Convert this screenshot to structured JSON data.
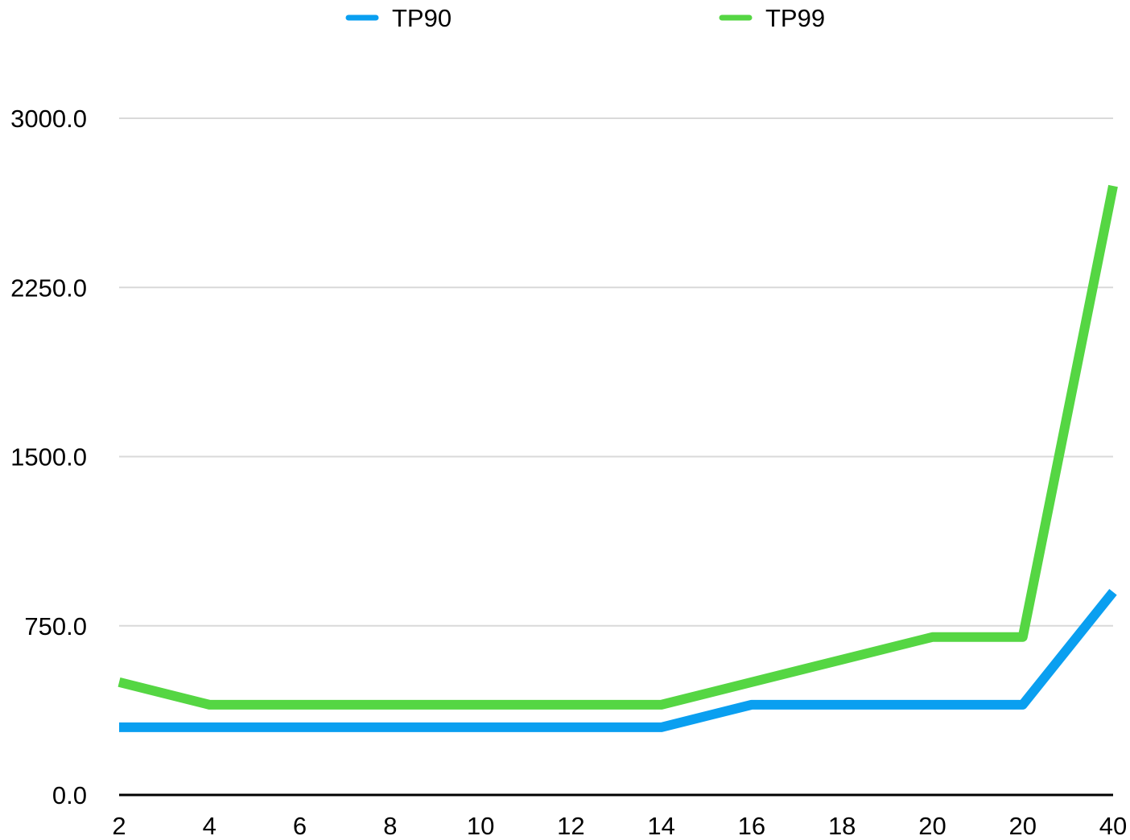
{
  "chart_data": {
    "type": "line",
    "categories": [
      "2",
      "4",
      "6",
      "8",
      "10",
      "12",
      "14",
      "16",
      "18",
      "20",
      "20",
      "40"
    ],
    "series": [
      {
        "name": "TP90",
        "color": "#0a9ff0",
        "values": [
          300,
          300,
          300,
          300,
          300,
          300,
          300,
          400,
          400,
          400,
          400,
          900
        ]
      },
      {
        "name": "TP99",
        "color": "#55d643",
        "values": [
          500,
          400,
          400,
          400,
          400,
          400,
          400,
          500,
          600,
          700,
          700,
          2700
        ]
      }
    ],
    "yticks": [
      "0.0",
      "750.0",
      "1500.0",
      "2250.0",
      "3000.0"
    ],
    "ylim": [
      0,
      3000
    ],
    "grid": true,
    "legend_position": "top-center",
    "gridline_color": "#d9d9d9",
    "axis_color": "#000000"
  }
}
